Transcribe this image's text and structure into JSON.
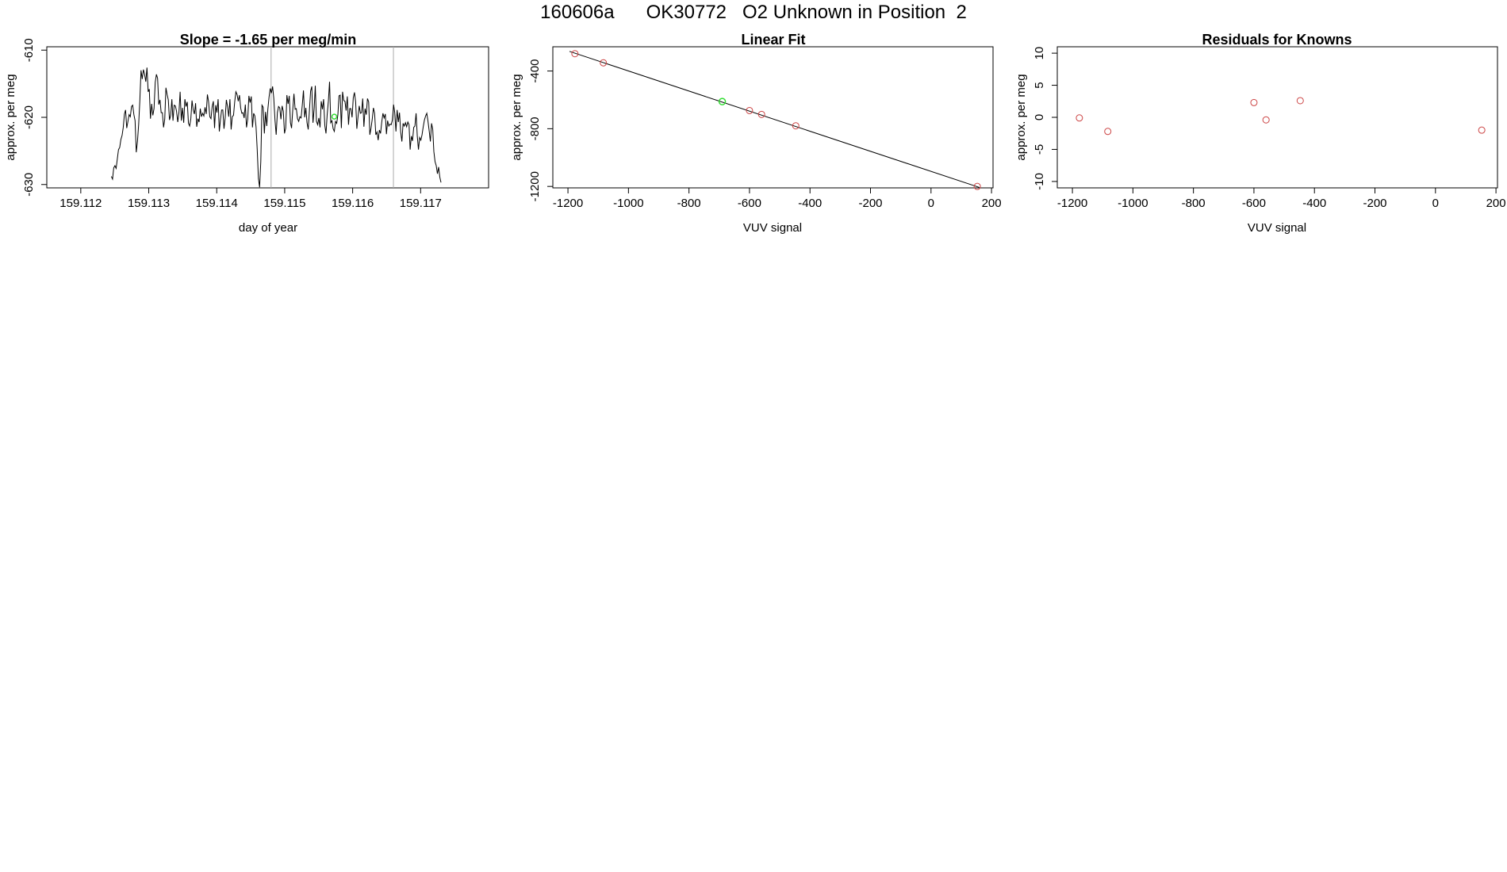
{
  "figure": {
    "title": "160606a      OK30772   O2 Unknown in Position  2"
  },
  "chart_data": [
    {
      "type": "line",
      "title": "Slope =  -1.65  per meg/min",
      "xlabel": "day of year",
      "ylabel": "approx. per meg",
      "xlim": [
        159.1115,
        159.118
      ],
      "ylim": [
        -630.5,
        -609.5
      ],
      "xticks": [
        "159.112",
        "159.113",
        "159.114",
        "159.115",
        "159.116",
        "159.117"
      ],
      "yticks": [
        "-610",
        "-620",
        "-630"
      ],
      "vlines": [
        159.1148,
        159.1166
      ],
      "x_start": 159.11245,
      "x_end": 159.1173,
      "values": [
        -628.8,
        -629.2,
        -627.5,
        -627.2,
        -627.6,
        -626.2,
        -624.8,
        -624.5,
        -623.3,
        -622.7,
        -621.5,
        -619.5,
        -618.9,
        -621.6,
        -620.6,
        -619.6,
        -619.9,
        -618.4,
        -618.2,
        -619.6,
        -620.5,
        -625.2,
        -623.6,
        -621.1,
        -617.5,
        -613.0,
        -614.3,
        -612.9,
        -613.6,
        -614.7,
        -612.6,
        -616.2,
        -615.8,
        -620.2,
        -618.0,
        -619.7,
        -618.7,
        -614.8,
        -613.6,
        -614.2,
        -618.1,
        -617.4,
        -619.3,
        -619.3,
        -621.5,
        -620.3,
        -615.6,
        -616.6,
        -617.4,
        -620.4,
        -619.7,
        -617.3,
        -620.5,
        -618.2,
        -618.3,
        -619.1,
        -620.7,
        -619.3,
        -616.2,
        -620.5,
        -618.6,
        -620.8,
        -617.3,
        -618.4,
        -617.7,
        -620.9,
        -621.3,
        -620.2,
        -617.5,
        -618.9,
        -619.5,
        -617.9,
        -621.4,
        -620.2,
        -620.7,
        -618.7,
        -619.9,
        -619.4,
        -619.8,
        -618.5,
        -619.5,
        -616.6,
        -617.7,
        -619.9,
        -620.2,
        -618.4,
        -617.6,
        -621.6,
        -618.2,
        -619.3,
        -617.3,
        -622.1,
        -620.4,
        -618.9,
        -618.9,
        -621.7,
        -620.1,
        -617.4,
        -618.4,
        -619.9,
        -617.3,
        -621.8,
        -619.9,
        -619.7,
        -617.7,
        -616.2,
        -616.6,
        -617.6,
        -616.7,
        -618.6,
        -619.4,
        -619.3,
        -620.1,
        -618.1,
        -621.5,
        -620.3,
        -616.8,
        -617.8,
        -616.9,
        -621.5,
        -619.4,
        -619.8,
        -621.4,
        -624.8,
        -629.1,
        -630.4,
        -626.6,
        -618.2,
        -618.5,
        -622.4,
        -619.2,
        -621.3,
        -618.8,
        -617.0,
        -615.7,
        -616.4,
        -615.4,
        -617.2,
        -620.4,
        -622.6,
        -619.3,
        -618.4,
        -618.6,
        -620.3,
        -618.3,
        -619.1,
        -622.4,
        -621.6,
        -616.7,
        -618.0,
        -616.8,
        -620.8,
        -621.6,
        -618.9,
        -616.5,
        -618.8,
        -618.7,
        -620.2,
        -620.6,
        -619.9,
        -620.1,
        -618.2,
        -616.0,
        -620.0,
        -618.6,
        -620.8,
        -621.8,
        -619.0,
        -616.1,
        -615.4,
        -620.8,
        -618.7,
        -615.3,
        -620.6,
        -621.1,
        -620.1,
        -621.5,
        -617.6,
        -618.8,
        -617.3,
        -621.2,
        -622.4,
        -619.6,
        -617.6,
        -614.7,
        -620.8,
        -620.5,
        -621.7,
        -622.1,
        -620.6,
        -620.9,
        -619.6,
        -616.8,
        -616.7,
        -621.6,
        -616.2,
        -617.5,
        -617.6,
        -619.0,
        -616.9,
        -621.1,
        -618.7,
        -618.7,
        -620.0,
        -617.1,
        -616.3,
        -617.7,
        -621.7,
        -619.9,
        -618.3,
        -619.4,
        -619.3,
        -617.2,
        -621.4,
        -618.7,
        -619.6,
        -617.2,
        -617.7,
        -622.6,
        -621.6,
        -620.3,
        -618.6,
        -619.4,
        -622.6,
        -622.2,
        -623.4,
        -621.9,
        -622.4,
        -620.7,
        -619.4,
        -620.1,
        -619.5,
        -622.5,
        -620.5,
        -621.3,
        -621.0,
        -621.1,
        -620.4,
        -618.1,
        -619.3,
        -622.1,
        -618.9,
        -620.7,
        -619.3,
        -622.2,
        -623.6,
        -620.9,
        -621.3,
        -620.8,
        -621.4,
        -620.7,
        -621.1,
        -624.8,
        -622.8,
        -623.5,
        -621.5,
        -621.3,
        -619.4,
        -622.8,
        -624.8,
        -623.0,
        -623.4,
        -622.6,
        -621.4,
        -620.4,
        -619.8,
        -619.4,
        -620.6,
        -622.0,
        -623.6,
        -620.9,
        -621.8,
        -625.1,
        -626.6,
        -627.2,
        -628.4,
        -627.4,
        -628.9,
        -629.7
      ],
      "green_point": [
        159.11573,
        -619.9
      ]
    },
    {
      "type": "scatter",
      "title": "Linear Fit",
      "xlabel": "VUV signal",
      "ylabel": "approx. per meg",
      "xlim": [
        -1250,
        205
      ],
      "ylim": [
        -1210,
        -232
      ],
      "xticks": [
        "-1200",
        "-1000",
        "-800",
        "-600",
        "-400",
        "-200",
        "0",
        "200"
      ],
      "yticks": [
        "-400",
        "-800",
        "-1200"
      ],
      "fit_line": [
        [
          -1195,
          -264
        ],
        [
          160,
          -1207
        ]
      ],
      "points": [
        [
          -1177,
          -280
        ],
        [
          -1083,
          -343
        ],
        [
          -600,
          -674
        ],
        [
          -560,
          -701
        ],
        [
          -447,
          -780
        ],
        [
          153,
          -1200
        ]
      ],
      "point_color": "#cc4444",
      "unknown_point": [
        -690,
        -612
      ],
      "unknown_color": "#33dd33"
    },
    {
      "type": "scatter",
      "title": "Residuals for Knowns",
      "xlabel": "",
      "ylabel": "approx. per meg",
      "xlim": [
        -1250,
        205
      ],
      "ylim": [
        -11,
        11
      ],
      "xticks": [
        "-1200",
        "-1000",
        "-800",
        "-600",
        "-400",
        "-200",
        "0",
        "200"
      ],
      "yticks": [
        "10",
        "5",
        "0",
        "-5",
        "-10"
      ],
      "points": [
        [
          -1177,
          -0.1
        ],
        [
          -1083,
          -2.2
        ],
        [
          -600,
          2.3
        ],
        [
          -560,
          -0.4
        ],
        [
          -447,
          2.6
        ],
        [
          153,
          -2.0
        ]
      ],
      "point_color": "#cc4444"
    }
  ],
  "extra_labels": {
    "vuv_signal_3": "VUV signal"
  }
}
